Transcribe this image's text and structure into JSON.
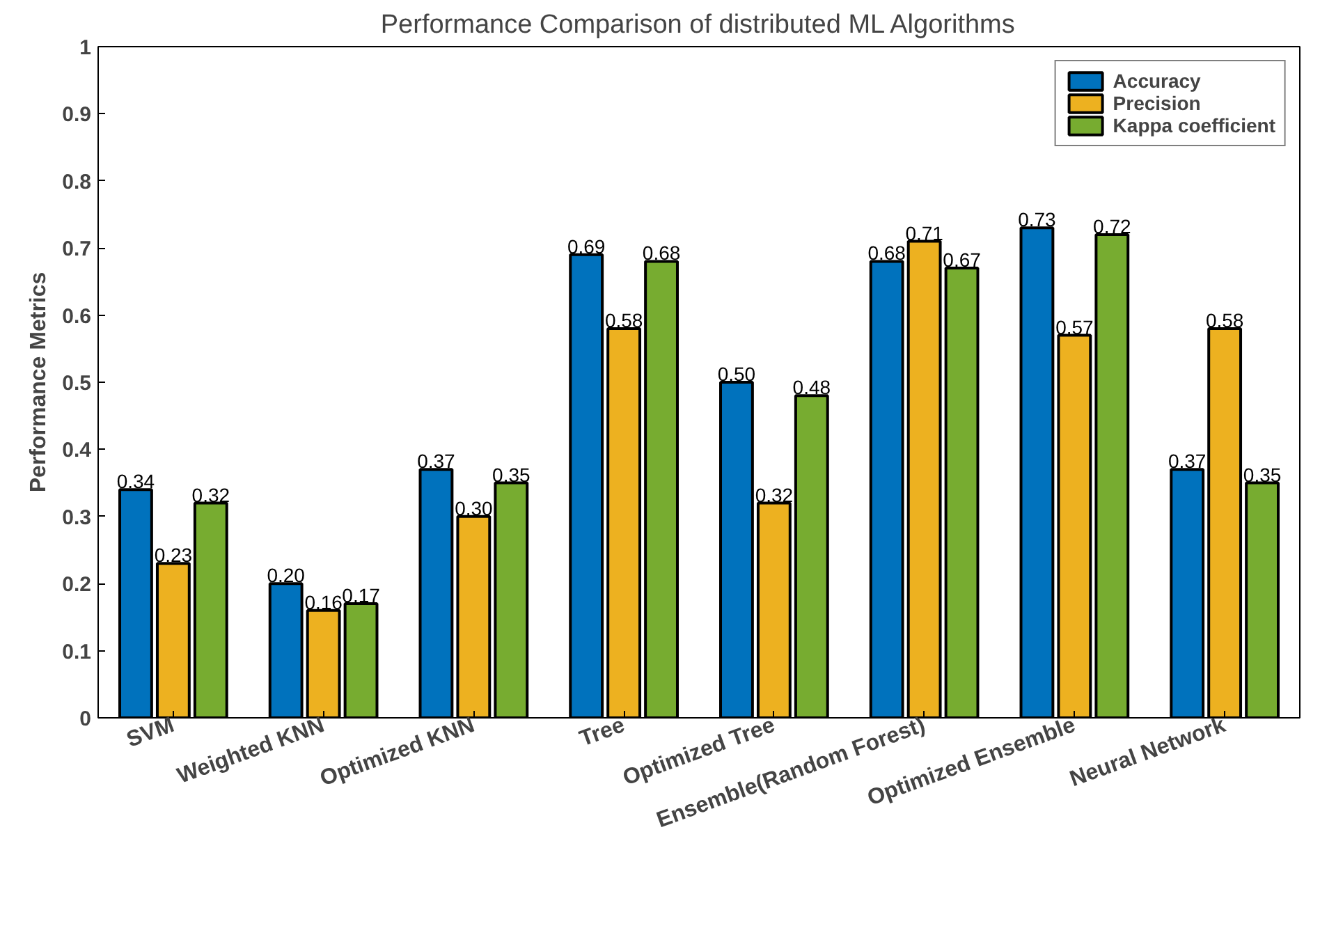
{
  "chart_data": {
    "type": "bar",
    "title": "Performance Comparison of distributed ML Algorithms",
    "ylabel": "Performance Metrics",
    "categories": [
      "SVM",
      "Weighted KNN",
      "Optimized KNN",
      "Tree",
      "Optimized Tree",
      "Ensemble(Random Forest)",
      "Optimized Ensemble",
      "Neural Network"
    ],
    "series": [
      {
        "name": "Accuracy",
        "color": "#0072bd",
        "values": [
          0.34,
          0.2,
          0.37,
          0.69,
          0.5,
          0.68,
          0.73,
          0.37
        ],
        "value_labels": [
          "0.34",
          "0.20",
          "0.37",
          "0.69",
          "0.50",
          "0.68",
          "0.73",
          "0.37"
        ]
      },
      {
        "name": "Precision",
        "color": "#edb120",
        "values": [
          0.23,
          0.16,
          0.3,
          0.58,
          0.32,
          0.71,
          0.57,
          0.58
        ],
        "value_labels": [
          "0.23",
          "0.16",
          "0.30",
          "0.58",
          "0.32",
          "0.71",
          "0.57",
          "0.58"
        ]
      },
      {
        "name": "Kappa coefficient",
        "color": "#77ac30",
        "values": [
          0.32,
          0.17,
          0.35,
          0.68,
          0.48,
          0.67,
          0.72,
          0.35
        ],
        "value_labels": [
          "0.32",
          "0.17",
          "0.35",
          "0.68",
          "0.48",
          "0.67",
          "0.72",
          "0.35"
        ]
      }
    ],
    "ylim": [
      0,
      1
    ],
    "yticks": [
      0,
      0.1,
      0.2,
      0.3,
      0.4,
      0.5,
      0.6,
      0.7,
      0.8,
      0.9,
      1
    ],
    "legend": "top right",
    "grid": false
  }
}
